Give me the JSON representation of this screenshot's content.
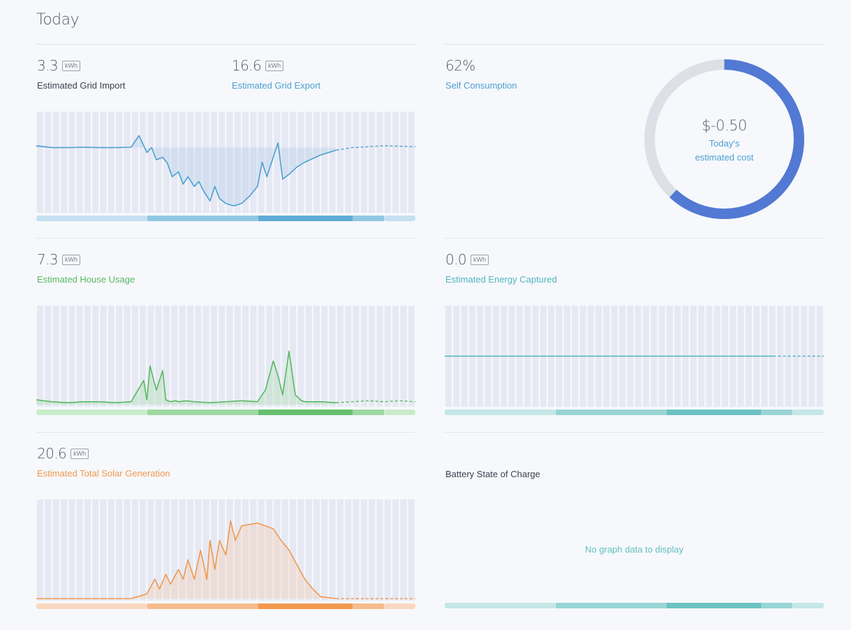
{
  "header": {
    "title": "Today"
  },
  "colors": {
    "blue": "#4d9fd0",
    "green": "#5ab963",
    "teal": "#51b6bd",
    "orange": "#f0984e",
    "stripe": "#e6e9f3",
    "donut_track": "#dde0e6"
  },
  "grid_import": {
    "value": "3.3",
    "unit": "kWh",
    "label": "Estimated Grid Import"
  },
  "grid_export": {
    "value": "16.6",
    "unit": "kWh",
    "label": "Estimated Grid Export"
  },
  "self_consumption": {
    "value": "62%",
    "label": "Self Consumption",
    "percent": 62,
    "cost": "$-0.50",
    "cost_label_line1": "Today's",
    "cost_label_line2": "estimated cost"
  },
  "house_usage": {
    "value": "7.3",
    "unit": "kWh",
    "label": "Estimated House Usage"
  },
  "energy_captured": {
    "value": "0.0",
    "unit": "kWh",
    "label": "Estimated Energy Captured"
  },
  "solar_generation": {
    "value": "20.6",
    "unit": "kWh",
    "label": "Estimated Total Solar Generation"
  },
  "battery": {
    "label": "Battery State of Charge",
    "empty_message": "No graph data to display"
  },
  "chart_data": [
    {
      "type": "area",
      "name": "grid",
      "baseline": 0.3,
      "x_range": [
        0,
        24
      ],
      "y_range": [
        -1,
        1
      ],
      "x": [
        0,
        1,
        2,
        3,
        4,
        5,
        6,
        6.5,
        7,
        7.3,
        7.6,
        8,
        8.3,
        8.6,
        9,
        9.3,
        9.6,
        10,
        10.3,
        10.6,
        11,
        11.3,
        11.6,
        12,
        12.5,
        13,
        13.5,
        14,
        14.3,
        14.6,
        15,
        15.3,
        15.6,
        16,
        16.5,
        17,
        18,
        19,
        20,
        21,
        22,
        23,
        24
      ],
      "y": [
        0.34,
        0.3,
        0.3,
        0.31,
        0.3,
        0.3,
        0.31,
        0.55,
        0.2,
        0.3,
        0.05,
        0.1,
        -0.02,
        -0.3,
        -0.2,
        -0.45,
        -0.3,
        -0.5,
        -0.4,
        -0.6,
        -0.8,
        -0.5,
        -0.75,
        -0.85,
        -0.9,
        -0.85,
        -0.7,
        -0.5,
        0.0,
        -0.3,
        0.1,
        0.4,
        -0.35,
        -0.25,
        -0.1,
        0.0,
        0.15,
        0.25,
        0.3,
        0.32,
        0.34,
        0.33,
        0.32
      ]
    },
    {
      "type": "area",
      "name": "house",
      "x_range": [
        0,
        24
      ],
      "y_range": [
        0,
        1
      ],
      "x": [
        0,
        1,
        2,
        3,
        4,
        5,
        6,
        6.8,
        7,
        7.2,
        7.6,
        8,
        8.2,
        8.5,
        8.8,
        9,
        9.5,
        10,
        11,
        12,
        13,
        14,
        14.5,
        15,
        15.3,
        15.6,
        16,
        16.4,
        16.8,
        17,
        18,
        19,
        20,
        21,
        22,
        23,
        24
      ],
      "y": [
        0.05,
        0.03,
        0.02,
        0.03,
        0.03,
        0.02,
        0.03,
        0.25,
        0.05,
        0.4,
        0.15,
        0.35,
        0.05,
        0.03,
        0.04,
        0.03,
        0.04,
        0.03,
        0.02,
        0.03,
        0.04,
        0.03,
        0.15,
        0.45,
        0.3,
        0.1,
        0.55,
        0.1,
        0.04,
        0.03,
        0.03,
        0.02,
        0.03,
        0.04,
        0.03,
        0.04,
        0.03
      ]
    },
    {
      "type": "line",
      "name": "energy-captured",
      "x_range": [
        0,
        24
      ],
      "y_range": [
        0,
        1
      ],
      "x": [
        0,
        20.8,
        24
      ],
      "y": [
        0.5,
        0.5,
        0.5
      ]
    },
    {
      "type": "area",
      "name": "solar",
      "x_range": [
        0,
        24
      ],
      "y_range": [
        0,
        1
      ],
      "x": [
        0,
        5,
        6,
        7,
        7.5,
        7.8,
        8.2,
        8.5,
        9,
        9.3,
        9.6,
        10,
        10.4,
        10.8,
        11,
        11.3,
        11.6,
        12,
        12.3,
        12.6,
        13,
        14,
        15,
        15.5,
        16,
        16.5,
        17,
        17.5,
        18,
        19,
        20,
        21,
        22,
        23,
        24
      ],
      "y": [
        0,
        0,
        0,
        0.05,
        0.2,
        0.1,
        0.25,
        0.15,
        0.3,
        0.2,
        0.4,
        0.2,
        0.5,
        0.2,
        0.6,
        0.3,
        0.6,
        0.45,
        0.8,
        0.6,
        0.75,
        0.78,
        0.72,
        0.6,
        0.5,
        0.35,
        0.2,
        0.1,
        0.02,
        0,
        0,
        0,
        0,
        0,
        0
      ]
    }
  ]
}
